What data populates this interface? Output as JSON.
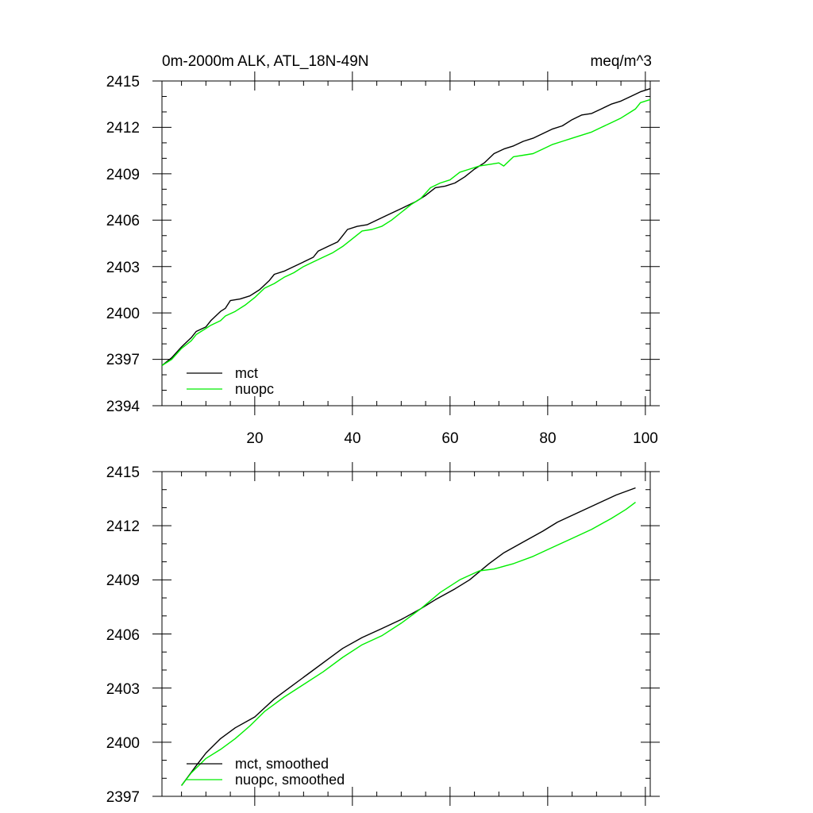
{
  "chart_data": [
    {
      "type": "line",
      "title_left": "0m-2000m ALK, ATL_18N-49N",
      "title_right": "meq/m^3",
      "xlim": [
        1,
        101
      ],
      "ylim": [
        2394,
        2415
      ],
      "xticks": [
        20,
        40,
        60,
        80,
        100
      ],
      "xtick_labels": [
        "20",
        "40",
        "60",
        "80",
        "100"
      ],
      "yticks": [
        2394,
        2397,
        2400,
        2403,
        2406,
        2409,
        2412,
        2415
      ],
      "ytick_labels": [
        "2394",
        "2397",
        "2400",
        "2403",
        "2406",
        "2409",
        "2412",
        "2415"
      ],
      "legend_position": "bottom-left",
      "series": [
        {
          "name": "mct",
          "color": "#000000",
          "points": [
            [
              1,
              2396.6
            ],
            [
              3,
              2397.1
            ],
            [
              5,
              2397.8
            ],
            [
              7,
              2398.4
            ],
            [
              8,
              2398.8
            ],
            [
              10,
              2399.1
            ],
            [
              11,
              2399.5
            ],
            [
              13,
              2400.1
            ],
            [
              14,
              2400.3
            ],
            [
              15,
              2400.8
            ],
            [
              17,
              2400.9
            ],
            [
              19,
              2401.1
            ],
            [
              21,
              2401.5
            ],
            [
              23,
              2402.1
            ],
            [
              24,
              2402.5
            ],
            [
              26,
              2402.7
            ],
            [
              28,
              2403.0
            ],
            [
              30,
              2403.3
            ],
            [
              32,
              2403.6
            ],
            [
              33,
              2404.0
            ],
            [
              35,
              2404.3
            ],
            [
              37,
              2404.6
            ],
            [
              38,
              2405.0
            ],
            [
              39,
              2405.4
            ],
            [
              41,
              2405.6
            ],
            [
              43,
              2405.7
            ],
            [
              45,
              2406.0
            ],
            [
              47,
              2406.3
            ],
            [
              49,
              2406.6
            ],
            [
              51,
              2406.9
            ],
            [
              53,
              2407.2
            ],
            [
              55,
              2407.6
            ],
            [
              57,
              2408.1
            ],
            [
              59,
              2408.2
            ],
            [
              61,
              2408.4
            ],
            [
              63,
              2408.8
            ],
            [
              65,
              2409.3
            ],
            [
              67,
              2409.7
            ],
            [
              69,
              2410.3
            ],
            [
              71,
              2410.6
            ],
            [
              73,
              2410.8
            ],
            [
              75,
              2411.1
            ],
            [
              77,
              2411.3
            ],
            [
              79,
              2411.6
            ],
            [
              81,
              2411.9
            ],
            [
              83,
              2412.1
            ],
            [
              85,
              2412.5
            ],
            [
              87,
              2412.8
            ],
            [
              89,
              2412.9
            ],
            [
              91,
              2413.2
            ],
            [
              93,
              2413.5
            ],
            [
              95,
              2413.7
            ],
            [
              97,
              2414.0
            ],
            [
              99,
              2414.3
            ],
            [
              101,
              2414.5
            ]
          ]
        },
        {
          "name": "nuopc",
          "color": "#00ee00",
          "points": [
            [
              1,
              2396.6
            ],
            [
              3,
              2397.0
            ],
            [
              5,
              2397.7
            ],
            [
              7,
              2398.2
            ],
            [
              8,
              2398.6
            ],
            [
              10,
              2399.0
            ],
            [
              11,
              2399.2
            ],
            [
              13,
              2399.5
            ],
            [
              14,
              2399.8
            ],
            [
              16,
              2400.1
            ],
            [
              18,
              2400.5
            ],
            [
              20,
              2401.0
            ],
            [
              22,
              2401.6
            ],
            [
              24,
              2401.9
            ],
            [
              26,
              2402.3
            ],
            [
              28,
              2402.6
            ],
            [
              30,
              2403.0
            ],
            [
              32,
              2403.3
            ],
            [
              34,
              2403.6
            ],
            [
              36,
              2403.9
            ],
            [
              38,
              2404.3
            ],
            [
              40,
              2404.8
            ],
            [
              42,
              2405.3
            ],
            [
              44,
              2405.4
            ],
            [
              46,
              2405.6
            ],
            [
              48,
              2406.0
            ],
            [
              50,
              2406.5
            ],
            [
              52,
              2407.0
            ],
            [
              54,
              2407.4
            ],
            [
              56,
              2408.1
            ],
            [
              58,
              2408.4
            ],
            [
              60,
              2408.6
            ],
            [
              62,
              2409.1
            ],
            [
              64,
              2409.3
            ],
            [
              66,
              2409.5
            ],
            [
              68,
              2409.6
            ],
            [
              70,
              2409.7
            ],
            [
              71,
              2409.5
            ],
            [
              73,
              2410.1
            ],
            [
              75,
              2410.2
            ],
            [
              77,
              2410.3
            ],
            [
              79,
              2410.6
            ],
            [
              81,
              2410.9
            ],
            [
              83,
              2411.1
            ],
            [
              85,
              2411.3
            ],
            [
              87,
              2411.5
            ],
            [
              89,
              2411.7
            ],
            [
              91,
              2412.0
            ],
            [
              93,
              2412.3
            ],
            [
              95,
              2412.6
            ],
            [
              97,
              2413.0
            ],
            [
              98,
              2413.2
            ],
            [
              99,
              2413.6
            ],
            [
              101,
              2413.8
            ]
          ]
        }
      ]
    },
    {
      "type": "line",
      "xlim": [
        1,
        101
      ],
      "ylim": [
        2397,
        2415
      ],
      "xticks": [
        20,
        40,
        60,
        80,
        100
      ],
      "yticks": [
        2397,
        2400,
        2403,
        2406,
        2409,
        2412,
        2415
      ],
      "ytick_labels": [
        "2397",
        "2400",
        "2403",
        "2406",
        "2409",
        "2412",
        "2415"
      ],
      "legend_position": "bottom-left",
      "series": [
        {
          "name": "mct, smoothed",
          "color": "#000000",
          "points": [
            [
              5,
              2397.6
            ],
            [
              8,
              2398.7
            ],
            [
              10,
              2399.4
            ],
            [
              13,
              2400.2
            ],
            [
              16,
              2400.8
            ],
            [
              20,
              2401.4
            ],
            [
              24,
              2402.4
            ],
            [
              27,
              2403.0
            ],
            [
              31,
              2403.8
            ],
            [
              35,
              2404.6
            ],
            [
              38,
              2405.2
            ],
            [
              42,
              2405.8
            ],
            [
              46,
              2406.3
            ],
            [
              50,
              2406.8
            ],
            [
              54,
              2407.4
            ],
            [
              57,
              2407.9
            ],
            [
              61,
              2408.5
            ],
            [
              64,
              2409.0
            ],
            [
              68,
              2409.9
            ],
            [
              71,
              2410.5
            ],
            [
              75,
              2411.1
            ],
            [
              79,
              2411.7
            ],
            [
              82,
              2412.2
            ],
            [
              86,
              2412.7
            ],
            [
              90,
              2413.2
            ],
            [
              94,
              2413.7
            ],
            [
              98,
              2414.1
            ]
          ]
        },
        {
          "name": "nuopc, smoothed",
          "color": "#00ee00",
          "points": [
            [
              5,
              2397.6
            ],
            [
              7,
              2398.3
            ],
            [
              10,
              2399.1
            ],
            [
              13,
              2399.6
            ],
            [
              16,
              2400.2
            ],
            [
              19,
              2400.9
            ],
            [
              22,
              2401.7
            ],
            [
              26,
              2402.5
            ],
            [
              30,
              2403.2
            ],
            [
              34,
              2403.9
            ],
            [
              38,
              2404.7
            ],
            [
              42,
              2405.4
            ],
            [
              46,
              2405.9
            ],
            [
              50,
              2406.6
            ],
            [
              54,
              2407.4
            ],
            [
              58,
              2408.3
            ],
            [
              62,
              2409.0
            ],
            [
              66,
              2409.5
            ],
            [
              69,
              2409.6
            ],
            [
              73,
              2409.9
            ],
            [
              77,
              2410.3
            ],
            [
              81,
              2410.8
            ],
            [
              85,
              2411.3
            ],
            [
              89,
              2411.8
            ],
            [
              93,
              2412.4
            ],
            [
              96,
              2412.9
            ],
            [
              98,
              2413.3
            ]
          ]
        }
      ]
    }
  ]
}
